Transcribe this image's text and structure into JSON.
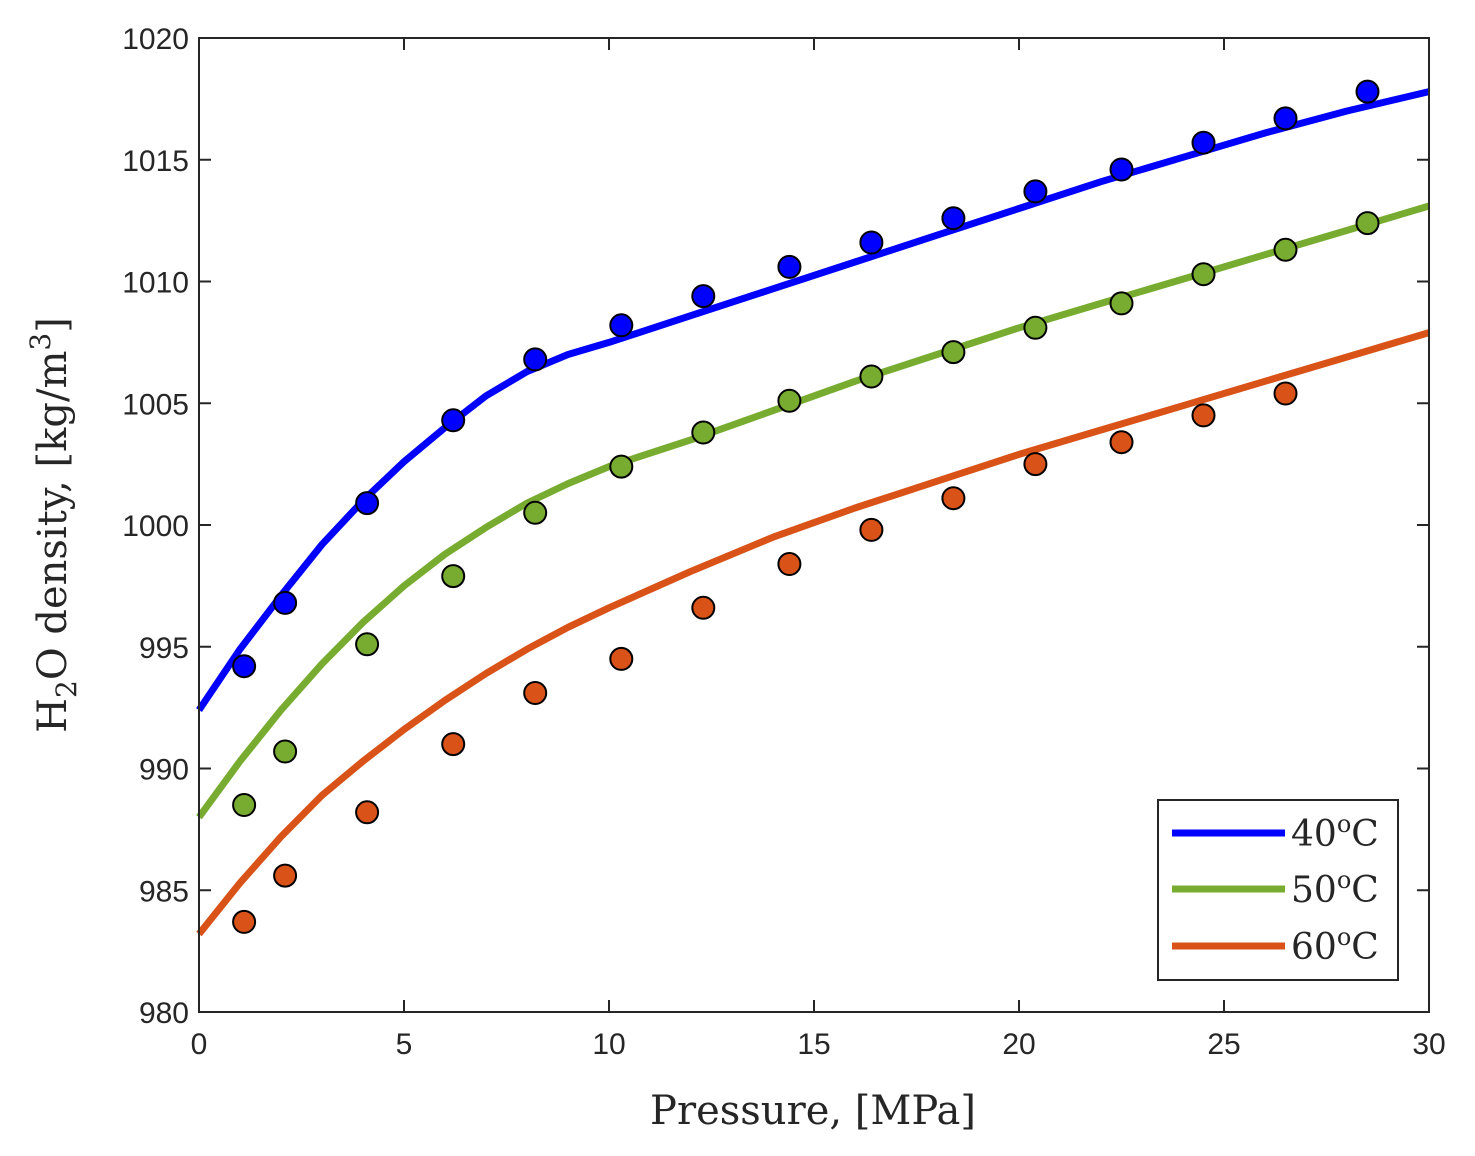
{
  "chart_data": {
    "type": "line",
    "title": "",
    "xlabel": "Pressure,  [MPa]",
    "ylabel": {
      "main": "H",
      "sub": "2",
      "rest": "O density,  [kg/m",
      "sup": "3",
      "end": "]"
    },
    "xlim": [
      0,
      30
    ],
    "ylim": [
      980,
      1020
    ],
    "xticks": [
      0,
      5,
      10,
      15,
      20,
      25,
      30
    ],
    "yticks": [
      980,
      985,
      990,
      995,
      1000,
      1005,
      1010,
      1015,
      1020
    ],
    "grid": false,
    "legend_position": "bottom-right",
    "series": [
      {
        "name": "40°C",
        "label": "40",
        "unit": "C",
        "color": "#0000ff",
        "model_x": [
          0,
          1,
          2,
          3,
          4,
          5,
          6,
          7,
          8,
          9,
          10,
          12,
          14,
          16,
          18,
          20,
          22,
          24,
          26,
          28,
          30
        ],
        "model_y": [
          992.4,
          994.9,
          997.1,
          999.2,
          1001.0,
          1002.6,
          1004.0,
          1005.3,
          1006.3,
          1007.0,
          1007.5,
          1008.6,
          1009.7,
          1010.8,
          1011.9,
          1013.0,
          1014.1,
          1015.1,
          1016.1,
          1017.0,
          1017.8
        ],
        "measured_x": [
          1.1,
          2.1,
          4.1,
          6.2,
          8.2,
          10.3,
          12.3,
          14.4,
          16.4,
          18.4,
          20.4,
          22.5,
          24.5,
          26.5,
          28.5
        ],
        "measured_y": [
          994.2,
          996.8,
          1000.9,
          1004.3,
          1006.8,
          1008.2,
          1009.4,
          1010.6,
          1011.6,
          1012.6,
          1013.7,
          1014.6,
          1015.7,
          1016.7,
          1017.8
        ]
      },
      {
        "name": "50°C",
        "label": "50",
        "unit": "C",
        "color": "#77ac30",
        "model_x": [
          0,
          1,
          2,
          3,
          4,
          5,
          6,
          7,
          8,
          9,
          10,
          12,
          14,
          16,
          18,
          20,
          22,
          24,
          26,
          28,
          30
        ],
        "model_y": [
          988.0,
          990.3,
          992.4,
          994.3,
          996.0,
          997.5,
          998.8,
          999.9,
          1000.9,
          1001.7,
          1002.4,
          1003.5,
          1004.7,
          1005.9,
          1007.0,
          1008.1,
          1009.1,
          1010.1,
          1011.1,
          1012.1,
          1013.1
        ],
        "measured_x": [
          1.1,
          2.1,
          4.1,
          6.2,
          8.2,
          10.3,
          12.3,
          14.4,
          16.4,
          18.4,
          20.4,
          22.5,
          24.5,
          26.5,
          28.5
        ],
        "measured_y": [
          988.5,
          990.7,
          995.1,
          997.9,
          1000.5,
          1002.4,
          1003.8,
          1005.1,
          1006.1,
          1007.1,
          1008.1,
          1009.1,
          1010.3,
          1011.3,
          1012.4
        ]
      },
      {
        "name": "60°C",
        "label": "60",
        "unit": "C",
        "color": "#d95319",
        "model_x": [
          0,
          1,
          2,
          3,
          4,
          5,
          6,
          7,
          8,
          9,
          10,
          12,
          14,
          16,
          18,
          20,
          22,
          24,
          26,
          28,
          30
        ],
        "model_y": [
          983.2,
          985.3,
          987.2,
          988.9,
          990.3,
          991.6,
          992.8,
          993.9,
          994.9,
          995.8,
          996.6,
          998.1,
          999.5,
          1000.7,
          1001.8,
          1002.9,
          1003.9,
          1004.9,
          1005.9,
          1006.9,
          1007.9
        ],
        "measured_x": [
          1.1,
          2.1,
          4.1,
          6.2,
          8.2,
          10.3,
          12.3,
          14.4,
          16.4,
          18.4,
          20.4,
          22.5,
          24.5,
          26.5
        ],
        "measured_y": [
          983.7,
          985.6,
          988.2,
          991.0,
          993.1,
          994.5,
          996.6,
          998.4,
          999.8,
          1001.1,
          1002.5,
          1003.4,
          1004.5,
          1005.4
        ]
      }
    ]
  }
}
